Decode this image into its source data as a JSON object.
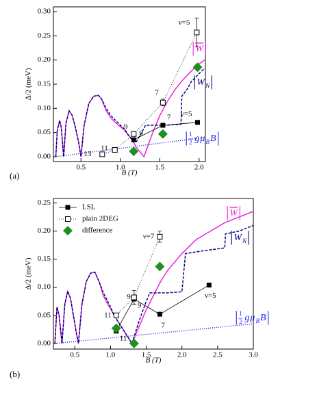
{
  "chart_data": [
    {
      "type": "line",
      "panel_label": "(a)",
      "xlabel": "B (T)",
      "ylabel": "Δ/2 (meV)",
      "xlim": [
        0.15,
        2.08
      ],
      "ylim": [
        -0.01,
        0.31
      ],
      "xticks": [
        0.5,
        {
          "value": 1,
          "label": "1.0"
        },
        1.5,
        {
          "value": 2,
          "label": "2.0"
        }
      ],
      "yticks": [
        {
          "value": 0,
          "label": "0.00"
        },
        0.05,
        {
          "value": 0.1,
          "label": "0.10"
        },
        0.15,
        {
          "value": 0.2,
          "label": "0.20"
        },
        0.25,
        {
          "value": 0.3,
          "label": "0.30"
        }
      ],
      "legend": false,
      "series": [
        {
          "color": "#ee22dd",
          "style": "solid",
          "curve_label": [
            {
              "t": "|"
            },
            {
              "t": "W",
              "italic": true,
              "overline": true
            },
            {
              "t": "|"
            }
          ],
          "x": [
            0.18,
            0.2,
            0.23,
            0.25,
            0.28,
            0.31,
            0.35,
            0.39,
            0.43,
            0.47,
            0.5,
            0.54,
            0.6,
            0.66,
            0.72,
            0.76,
            0.82,
            0.88,
            0.94,
            1.0,
            1.05,
            1.1,
            1.15,
            1.2,
            1.25,
            1.3,
            1.4,
            1.5,
            1.6,
            1.7,
            1.8,
            1.9,
            2.0,
            2.07
          ],
          "values": [
            0.0,
            0.055,
            0.075,
            0.06,
            0.0,
            0.07,
            0.095,
            0.085,
            0.06,
            0.03,
            0.0,
            0.065,
            0.11,
            0.125,
            0.127,
            0.12,
            0.095,
            0.08,
            0.07,
            0.062,
            0.055,
            0.045,
            0.035,
            0.02,
            0.01,
            0.0,
            0.045,
            0.085,
            0.115,
            0.14,
            0.16,
            0.177,
            0.192,
            0.2
          ]
        },
        {
          "color": "#000080",
          "style": "dashed",
          "curve_label": [
            {
              "t": "|"
            },
            {
              "t": "W",
              "italic": true
            },
            {
              "t": "N",
              "sub": true,
              "italic": true
            },
            {
              "t": "|"
            }
          ],
          "x": [
            0.18,
            0.2,
            0.23,
            0.25,
            0.28,
            0.31,
            0.35,
            0.39,
            0.43,
            0.47,
            0.5,
            0.54,
            0.6,
            0.66,
            0.72,
            0.76,
            0.82,
            0.88,
            0.94,
            1.0,
            1.05,
            1.1,
            1.15,
            1.2,
            1.27,
            1.32,
            1.55,
            1.77,
            1.78,
            1.85,
            1.9,
            2.0,
            2.07
          ],
          "values": [
            0.0,
            0.055,
            0.075,
            0.06,
            0.0,
            0.07,
            0.095,
            0.085,
            0.06,
            0.03,
            0.0,
            0.065,
            0.11,
            0.125,
            0.127,
            0.12,
            0.1,
            0.085,
            0.075,
            0.065,
            0.058,
            0.045,
            0.035,
            0.03,
            0.05,
            0.065,
            0.065,
            0.067,
            0.125,
            0.14,
            0.155,
            0.172,
            0.183
          ]
        },
        {
          "color": "#2222ee",
          "style": "dotted",
          "curve_label": [
            {
              "t": "|"
            },
            {
              "num": "1",
              "den": "2"
            },
            {
              "t": "g",
              "italic": true
            },
            {
              "t": "μ",
              "italic": true
            },
            {
              "t": "B",
              "sub": true,
              "italic": true
            },
            {
              "t": "B",
              "italic": true
            },
            {
              "t": "|"
            }
          ],
          "x": [
            0.18,
            2.07
          ],
          "values": [
            0.0,
            0.04
          ]
        },
        {
          "color": "#000000",
          "style": "solid",
          "marker": "filled-square",
          "x": [
            1.17,
            1.54,
            1.98
          ],
          "values": [
            0.035,
            0.065,
            0.071
          ],
          "labels": [
            "9",
            "7",
            "ν=5"
          ]
        },
        {
          "color": "#000000",
          "style": "dotted",
          "marker": "open-square",
          "x": [
            0.77,
            0.93,
            1.17,
            1.54,
            1.97
          ],
          "values": [
            0.005,
            0.014,
            0.047,
            0.112,
            0.257
          ],
          "errors": [
            null,
            null,
            0.004,
            0.007,
            0.03
          ],
          "labels": [
            "13",
            "11",
            "9",
            "7",
            "ν=5"
          ]
        },
        {
          "color": "#1f8f1f",
          "style": "none",
          "marker": "diamond",
          "x": [
            1.17,
            1.54,
            1.98
          ],
          "values": [
            0.011,
            0.047,
            0.185
          ]
        }
      ]
    },
    {
      "type": "line",
      "panel_label": "(b)",
      "xlabel": "B (T)",
      "ylabel": "Δ/2 (meV)",
      "xlim": [
        0.2,
        3.0
      ],
      "ylim": [
        -0.01,
        0.258
      ],
      "xticks": [
        0.5,
        {
          "value": 1,
          "label": "1.0"
        },
        1.5,
        {
          "value": 2,
          "label": "2.0"
        },
        2.5,
        {
          "value": 3,
          "label": "3.0"
        }
      ],
      "yticks": [
        {
          "value": 0,
          "label": "0.00"
        },
        0.05,
        {
          "value": 0.1,
          "label": "0.10"
        },
        0.15,
        {
          "value": 0.2,
          "label": "0.20"
        },
        0.25
      ],
      "legend": true,
      "series": [
        {
          "color": "#ee22dd",
          "style": "solid",
          "curve_label": [
            {
              "t": "|"
            },
            {
              "t": "W",
              "italic": true,
              "overline": true
            },
            {
              "t": "|"
            }
          ],
          "x": [
            0.22,
            0.25,
            0.28,
            0.32,
            0.36,
            0.4,
            0.44,
            0.48,
            0.52,
            0.55,
            0.6,
            0.66,
            0.72,
            0.78,
            0.84,
            0.9,
            0.96,
            1.0,
            1.05,
            1.1,
            1.15,
            1.2,
            1.25,
            1.3,
            1.4,
            1.5,
            1.6,
            1.7,
            1.8,
            2.0,
            2.2,
            2.4,
            2.6,
            2.8,
            3.0
          ],
          "values": [
            0.0,
            0.065,
            0.05,
            0.0,
            0.07,
            0.093,
            0.08,
            0.05,
            0.02,
            0.0,
            0.07,
            0.11,
            0.125,
            0.127,
            0.11,
            0.085,
            0.07,
            0.062,
            0.05,
            0.04,
            0.03,
            0.02,
            0.01,
            0.0,
            0.03,
            0.06,
            0.085,
            0.11,
            0.13,
            0.16,
            0.185,
            0.2,
            0.215,
            0.225,
            0.235
          ]
        },
        {
          "color": "#000080",
          "style": "dashed",
          "curve_label": [
            {
              "t": "|"
            },
            {
              "t": "W",
              "italic": true
            },
            {
              "t": "N",
              "sub": true,
              "italic": true
            },
            {
              "t": "|"
            }
          ],
          "x": [
            0.22,
            0.25,
            0.28,
            0.32,
            0.36,
            0.4,
            0.44,
            0.48,
            0.52,
            0.55,
            0.6,
            0.66,
            0.72,
            0.78,
            0.84,
            0.9,
            0.96,
            1.0,
            1.05,
            1.1,
            1.15,
            1.2,
            1.25,
            1.3,
            1.4,
            1.5,
            1.55,
            1.8,
            2.0,
            2.05,
            2.3,
            2.6,
            2.61,
            2.8,
            3.0
          ],
          "values": [
            0.0,
            0.065,
            0.05,
            0.0,
            0.07,
            0.093,
            0.08,
            0.05,
            0.02,
            0.0,
            0.07,
            0.11,
            0.125,
            0.127,
            0.11,
            0.09,
            0.075,
            0.065,
            0.05,
            0.04,
            0.03,
            0.02,
            0.01,
            0.0,
            0.04,
            0.075,
            0.09,
            0.09,
            0.092,
            0.16,
            0.165,
            0.17,
            0.195,
            0.2,
            0.21
          ]
        },
        {
          "color": "#2222ee",
          "style": "dotted",
          "curve_label": [
            {
              "t": "|"
            },
            {
              "num": "1",
              "den": "2"
            },
            {
              "t": "g",
              "italic": true
            },
            {
              "t": "μ",
              "italic": true
            },
            {
              "t": "B",
              "sub": true,
              "italic": true
            },
            {
              "t": "B",
              "italic": true
            },
            {
              "t": "|"
            }
          ],
          "x": [
            0.22,
            3.0
          ],
          "values": [
            0.0,
            0.035
          ]
        },
        {
          "name": "LSL",
          "color": "#000000",
          "style": "solid",
          "marker": "filled-square",
          "x": [
            1.08,
            1.33,
            1.69,
            2.38
          ],
          "values": [
            0.022,
            0.079,
            0.052,
            0.104
          ],
          "labels": [
            "11",
            "9",
            "7",
            "ν=5"
          ]
        },
        {
          "name": "plain 2DEG",
          "color": "#000000",
          "style": "dotted",
          "marker": "open-square",
          "x": [
            1.08,
            1.33,
            1.69
          ],
          "values": [
            0.05,
            0.082,
            0.19
          ],
          "errors": [
            null,
            0.012,
            0.01
          ],
          "labels": [
            "11",
            "9",
            "ν=7"
          ]
        },
        {
          "name": "difference",
          "color": "#1f8f1f",
          "style": "none",
          "marker": "diamond",
          "x": [
            1.08,
            1.33,
            1.69
          ],
          "values": [
            0.027,
            0.0,
            0.137
          ]
        }
      ]
    }
  ]
}
